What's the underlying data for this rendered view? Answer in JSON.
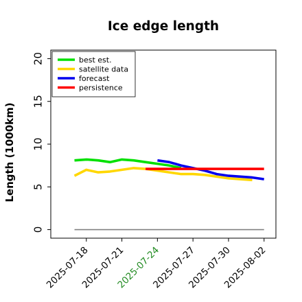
{
  "chart_data": {
    "type": "line",
    "title": "Ice edge length",
    "ylabel": "Length (1000km)",
    "xlabel": "",
    "x_type": "date",
    "xlim": [
      "2025-07-15",
      "2025-08-03"
    ],
    "ylim": [
      -1,
      21
    ],
    "yticks": [
      0,
      5,
      10,
      15,
      20
    ],
    "xticks": [
      "2025-07-18",
      "2025-07-21",
      "2025-07-24",
      "2025-07-27",
      "2025-07-30",
      "2025-08-02"
    ],
    "highlight_xtick": "2025-07-24",
    "highlight_color": "#228B22",
    "grid": false,
    "legend_position": "top-left",
    "baseline": {
      "y": 0,
      "x": [
        "2025-07-17",
        "2025-08-02"
      ],
      "color": "#808080"
    },
    "series": [
      {
        "name": "best est.",
        "color": "#00e000",
        "x": [
          "2025-07-17",
          "2025-07-18",
          "2025-07-19",
          "2025-07-20",
          "2025-07-21",
          "2025-07-22",
          "2025-07-23",
          "2025-07-24",
          "2025-07-25",
          "2025-07-26"
        ],
        "y": [
          8.1,
          8.2,
          8.1,
          7.9,
          8.2,
          8.1,
          7.9,
          7.7,
          7.5,
          7.2
        ]
      },
      {
        "name": "satellite data",
        "color": "#ffd700",
        "x": [
          "2025-07-17",
          "2025-07-18",
          "2025-07-19",
          "2025-07-20",
          "2025-07-21",
          "2025-07-22",
          "2025-07-23",
          "2025-07-24",
          "2025-07-25",
          "2025-07-26",
          "2025-07-27",
          "2025-07-28",
          "2025-07-29",
          "2025-07-30",
          "2025-07-31",
          "2025-08-01"
        ],
        "y": [
          6.3,
          7.0,
          6.7,
          6.8,
          7.0,
          7.2,
          7.1,
          6.9,
          6.7,
          6.5,
          6.5,
          6.4,
          6.2,
          6.0,
          5.9,
          5.8
        ]
      },
      {
        "name": "forecast",
        "color": "#0000ee",
        "x": [
          "2025-07-24",
          "2025-07-25",
          "2025-07-26",
          "2025-07-27",
          "2025-07-28",
          "2025-07-29",
          "2025-07-30",
          "2025-07-31",
          "2025-08-01",
          "2025-08-02"
        ],
        "y": [
          8.1,
          7.9,
          7.5,
          7.2,
          6.9,
          6.5,
          6.3,
          6.2,
          6.1,
          5.9
        ]
      },
      {
        "name": "persistence",
        "color": "#ff0000",
        "x": [
          "2025-07-23",
          "2025-08-02"
        ],
        "y": [
          7.1,
          7.1
        ]
      }
    ]
  }
}
